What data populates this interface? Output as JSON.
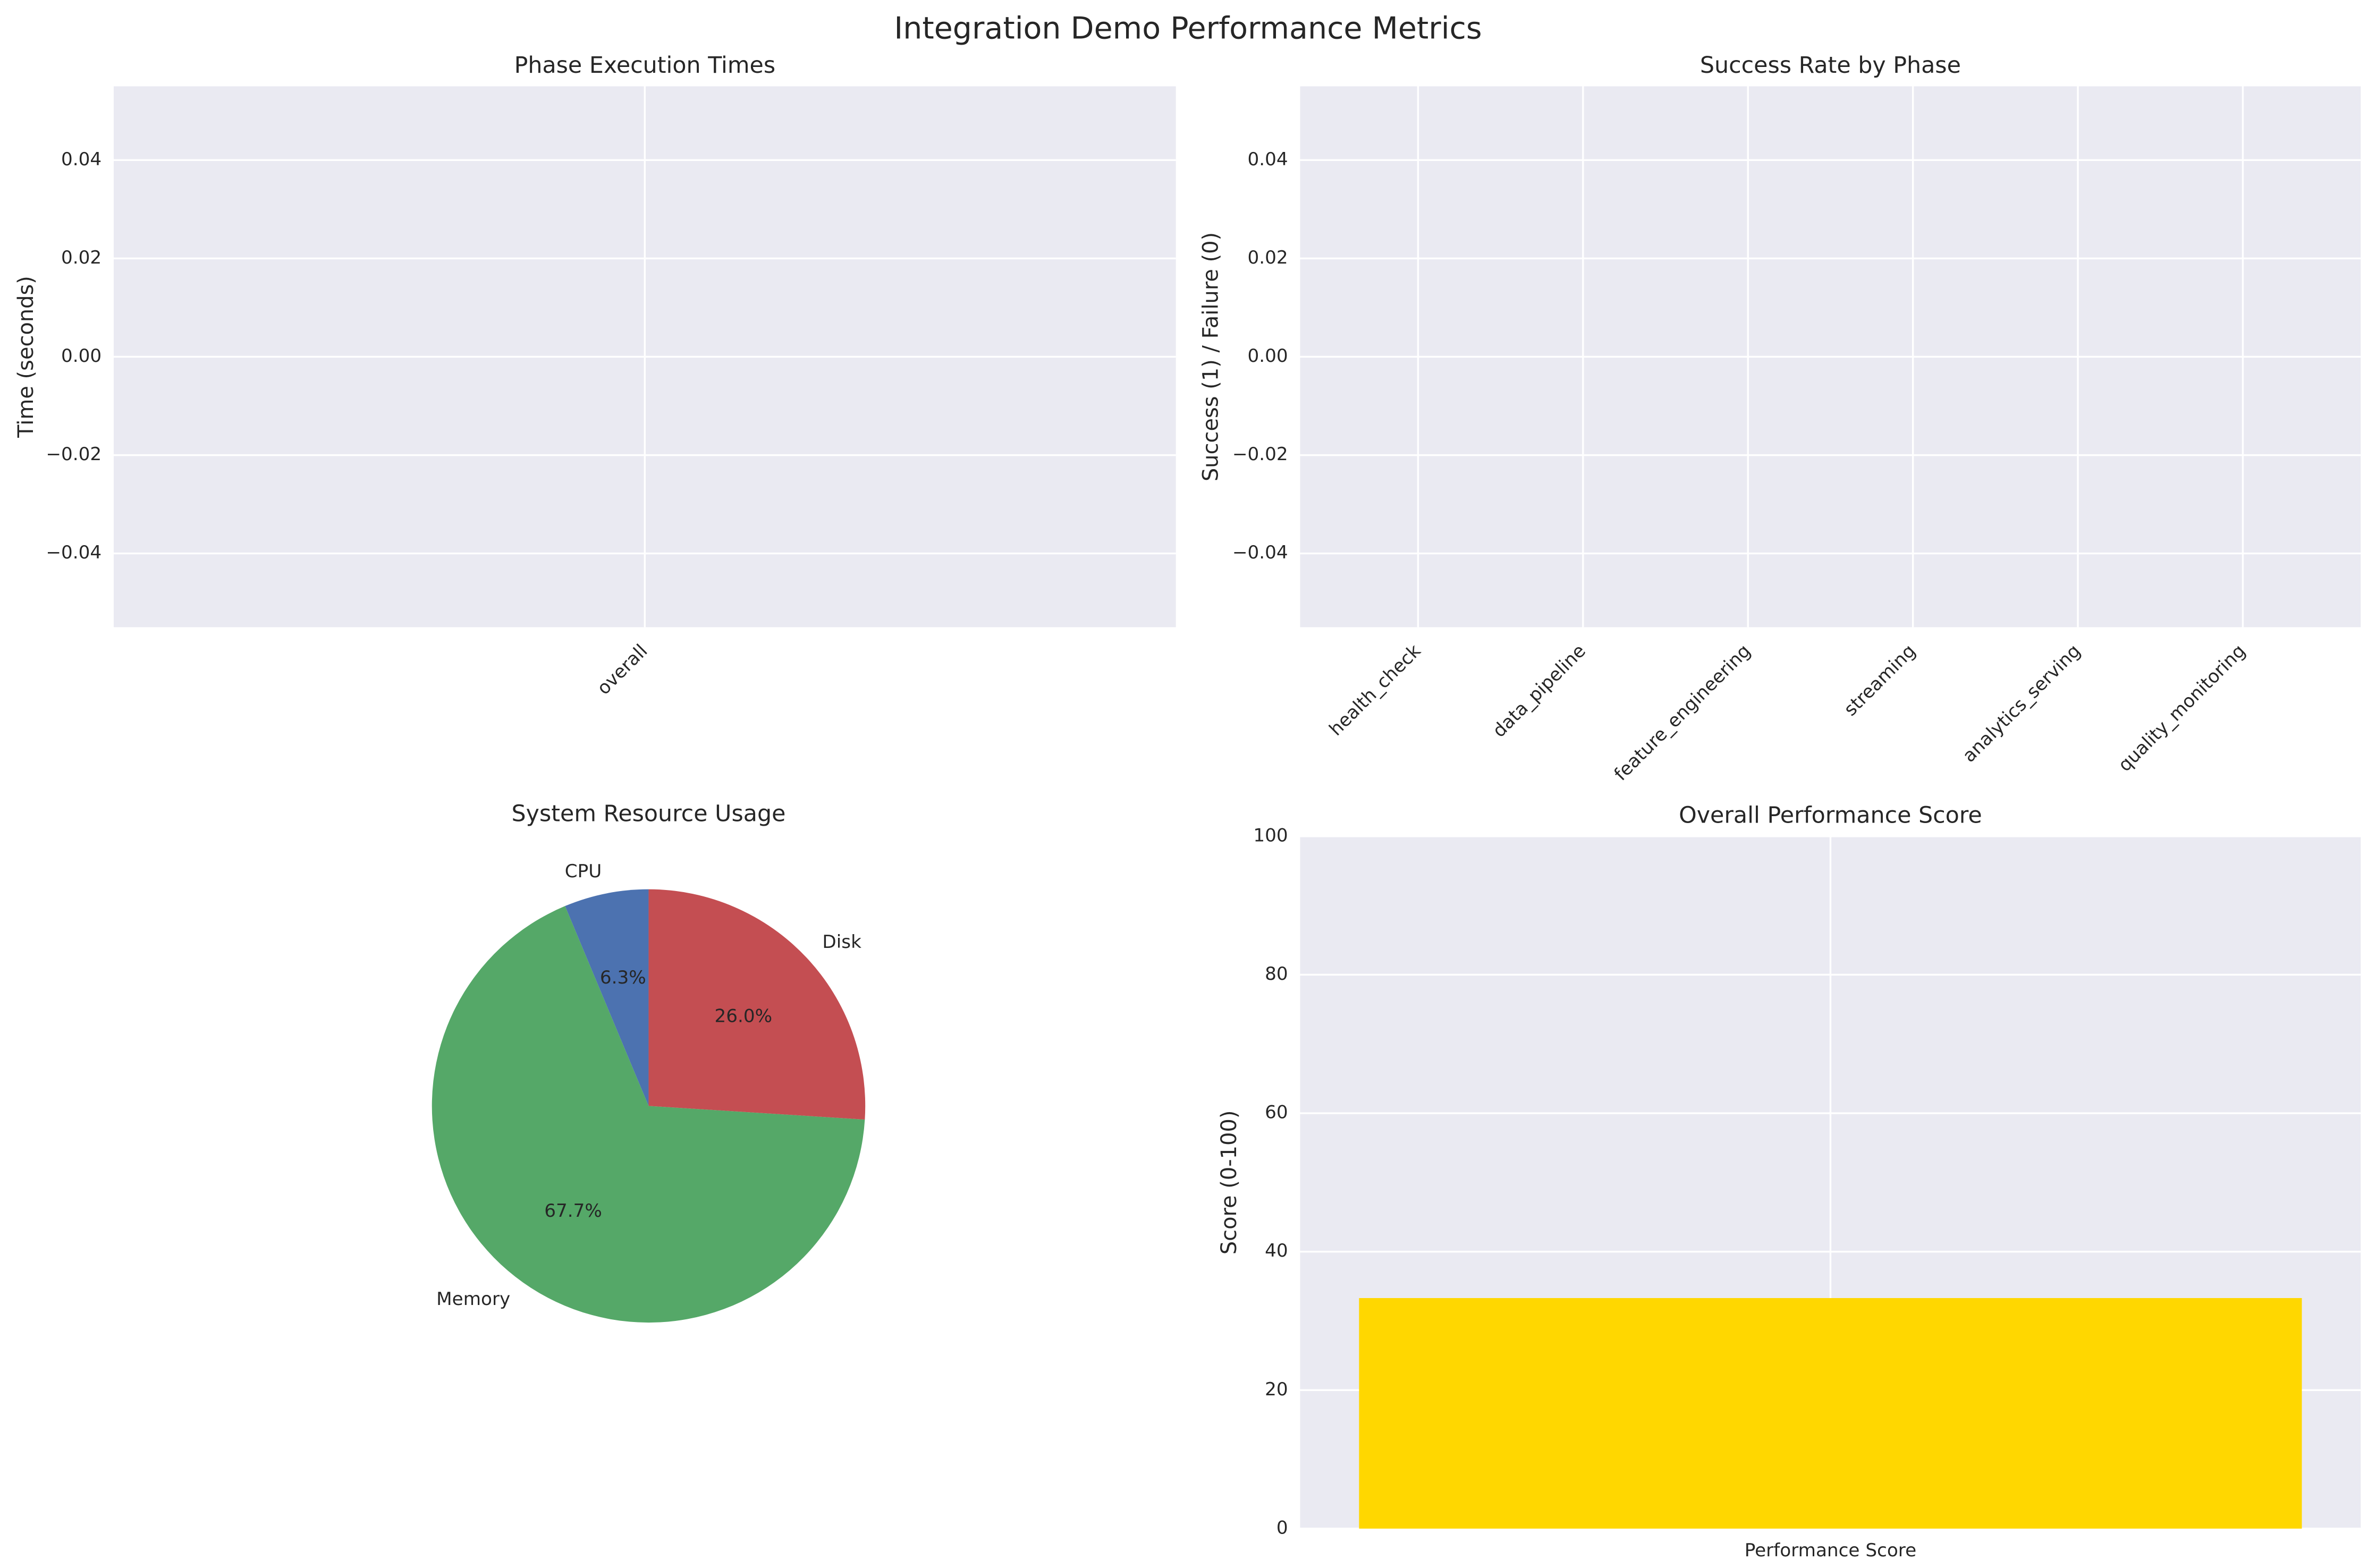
{
  "title": "Integration Demo Performance Metrics",
  "chart_data": [
    {
      "type": "bar",
      "title": "Phase Execution Times",
      "ylabel": "Time (seconds)",
      "categories": [
        "overall"
      ],
      "values": [
        null
      ],
      "ylim": [
        -0.055,
        0.055
      ],
      "yticks": [
        {
          "value": -0.04,
          "label": "−0.04"
        },
        {
          "value": -0.02,
          "label": "−0.02"
        },
        {
          "value": 0,
          "label": "0.00"
        },
        0.02,
        0.04
      ],
      "grid": true
    },
    {
      "type": "bar",
      "title": "Success Rate by Phase",
      "ylabel": "Success (1) / Failure (0)",
      "categories": [
        "health_check",
        "data_pipeline",
        "feature_engineering",
        "streaming",
        "analytics_serving",
        "quality_monitoring"
      ],
      "values": [
        null,
        null,
        null,
        null,
        null,
        null
      ],
      "ylim": [
        -0.055,
        0.055
      ],
      "yticks": [
        {
          "value": -0.04,
          "label": "−0.04"
        },
        {
          "value": -0.02,
          "label": "−0.02"
        },
        {
          "value": 0,
          "label": "0.00"
        },
        0.02,
        0.04
      ],
      "grid": true
    },
    {
      "type": "pie",
      "title": "System Resource Usage",
      "categories": [
        "CPU",
        "Memory",
        "Disk"
      ],
      "values": [
        6.3,
        67.7,
        26.0
      ],
      "value_labels": [
        "6.3%",
        "67.7%",
        "26.0%"
      ],
      "colors": [
        "#4c72b0",
        "#55a868",
        "#c44e52"
      ],
      "start_angle": 90
    },
    {
      "type": "bar",
      "title": "Overall Performance Score",
      "ylabel": "Score (0-100)",
      "categories": [
        "Performance Score"
      ],
      "values": [
        33.3
      ],
      "color": "#ffd700",
      "ylim": [
        0,
        100
      ],
      "yticks": [
        0,
        20,
        40,
        60,
        80,
        100
      ],
      "grid": true
    }
  ]
}
